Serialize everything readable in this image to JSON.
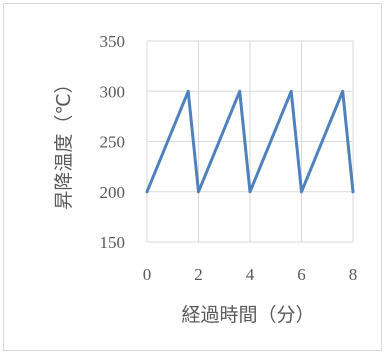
{
  "chart_data": {
    "type": "line",
    "title": "",
    "xlabel": "経過時間（分）",
    "ylabel": "昇降温度（℃）",
    "xlim": [
      0,
      8
    ],
    "ylim": [
      150,
      350
    ],
    "x_ticks": [
      "0",
      "2",
      "4",
      "6",
      "8"
    ],
    "y_ticks": [
      "150",
      "200",
      "250",
      "300",
      "350"
    ],
    "grid": true,
    "legend": "none",
    "series": [
      {
        "color": "#4f81bd",
        "x": [
          0,
          1.6,
          2.0,
          3.6,
          4.0,
          5.6,
          6.0,
          7.6,
          8.0
        ],
        "y": [
          200,
          300,
          200,
          300,
          200,
          300,
          200,
          300,
          200
        ]
      }
    ]
  }
}
